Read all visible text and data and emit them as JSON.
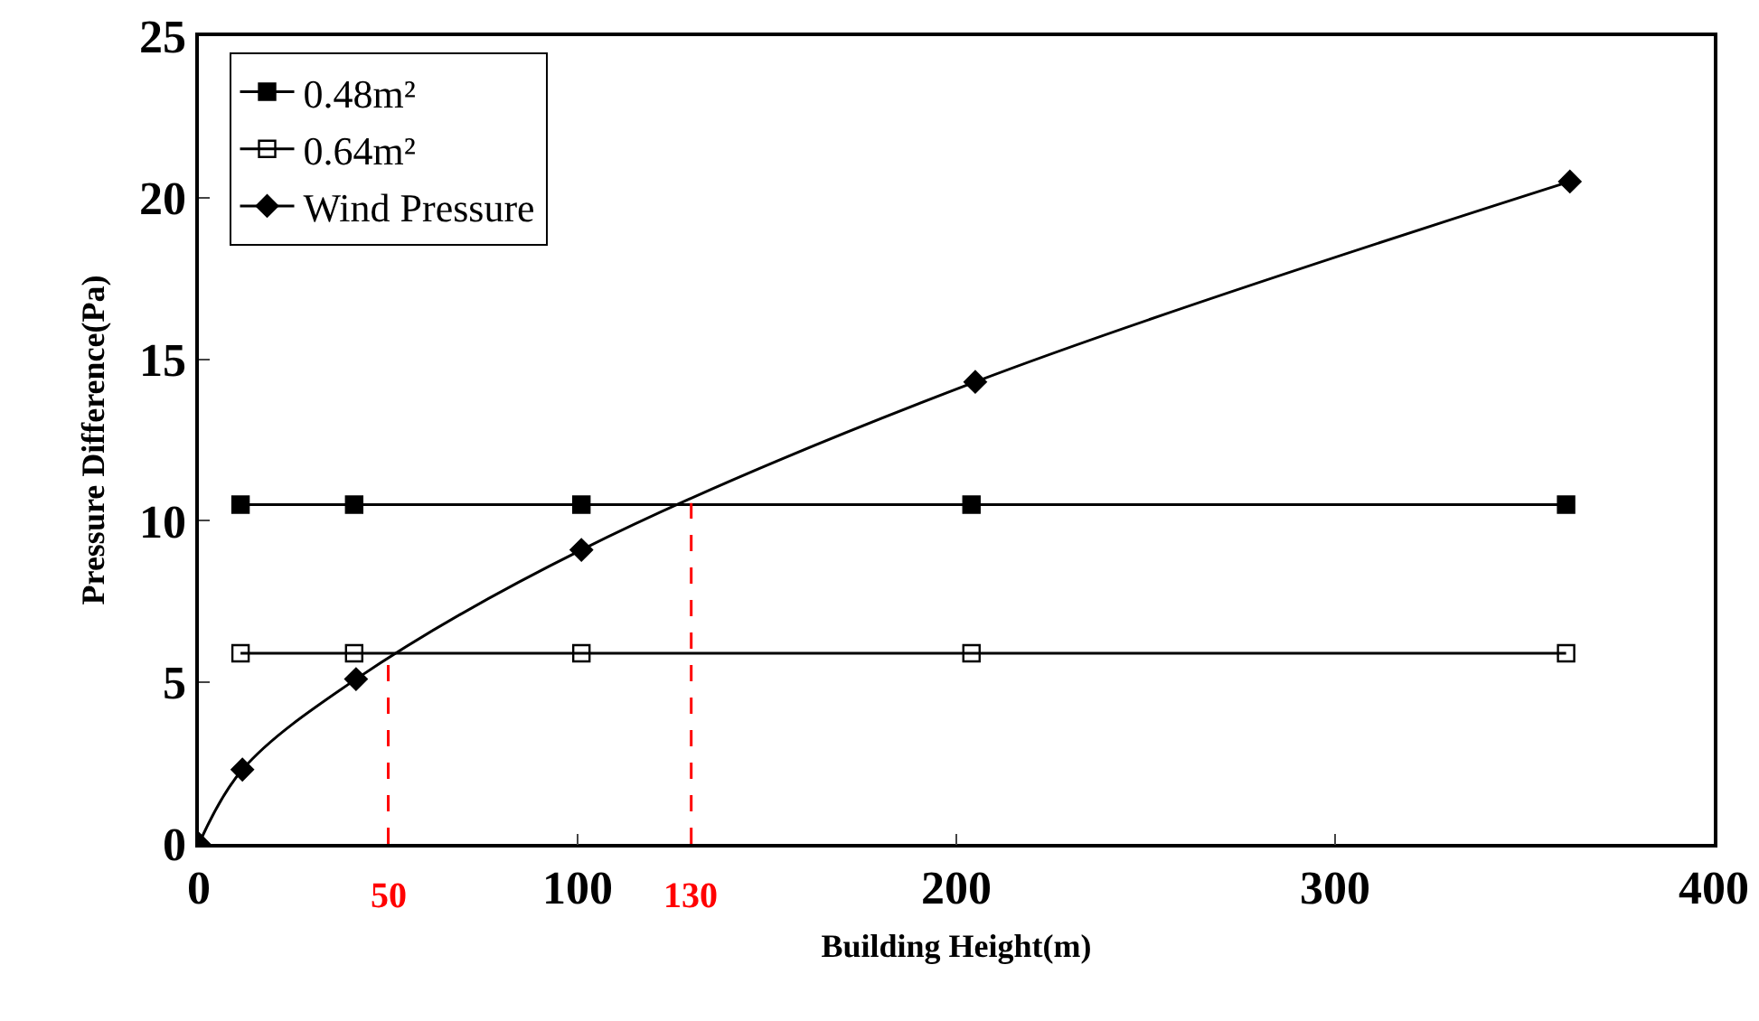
{
  "chart_data": {
    "type": "line",
    "xlabel": "Building Height(m)",
    "ylabel": "Pressure Difference(Pa)",
    "xlim": [
      0,
      400
    ],
    "xticks": [
      0,
      100,
      200,
      300,
      400
    ],
    "ylim": [
      0,
      25
    ],
    "yticks": [
      0,
      5,
      10,
      15,
      20,
      25
    ],
    "grid": false,
    "legend": "top left",
    "line_style": "solid",
    "series": [
      {
        "name": "0.48m²",
        "color": "#000000",
        "marker": "square",
        "x": [
          11,
          41,
          101,
          204,
          361
        ],
        "values": [
          10.5,
          10.5,
          10.5,
          10.5,
          10.5
        ]
      },
      {
        "name": "0.64m²",
        "color": "#000000",
        "marker": "square-open",
        "x": [
          11,
          41,
          101,
          204,
          361
        ],
        "values": [
          5.9,
          5.9,
          5.9,
          5.9,
          5.9
        ]
      },
      {
        "name": "Wind Pressure",
        "color": "#000000",
        "marker": "diamond",
        "x": [
          0,
          11.5,
          41.5,
          101,
          205,
          362
        ],
        "values": [
          0,
          2.3,
          5.1,
          9.1,
          14.3,
          20.5
        ]
      }
    ],
    "ref_lines": [
      {
        "axis": "x",
        "value": 50,
        "label": "50",
        "color": "#ff0000",
        "line_style": "dashed"
      },
      {
        "axis": "x",
        "value": 130,
        "label": "130",
        "color": "#ff0000",
        "line_style": "dashed"
      }
    ]
  }
}
